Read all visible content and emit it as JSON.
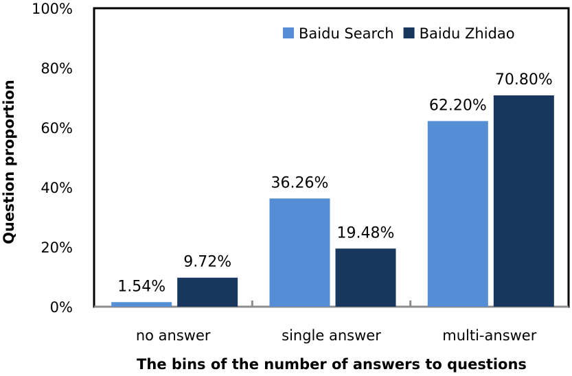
{
  "chart_data": {
    "type": "bar",
    "categories": [
      "no answer",
      "single answer",
      "multi-answer"
    ],
    "series": [
      {
        "name": "Baidu Search",
        "values": [
          1.54,
          36.26,
          62.2
        ],
        "labels": [
          "1.54%",
          "36.26%",
          "62.20%"
        ],
        "color": "#558ED5"
      },
      {
        "name": "Baidu Zhidao",
        "values": [
          9.72,
          19.48,
          70.8
        ],
        "labels": [
          "9.72%",
          "19.48%",
          "70.80%"
        ],
        "color": "#17375E"
      }
    ],
    "ylim": [
      0,
      100
    ],
    "yticks": [
      0,
      20,
      40,
      60,
      80,
      100
    ],
    "ytick_labels": [
      "0%",
      "20%",
      "40%",
      "60%",
      "80%",
      "100%"
    ],
    "xlabel": "The bins of the number of answers to questions",
    "ylabel": "Question proportion",
    "legend_position": "top-right",
    "grid": false
  }
}
